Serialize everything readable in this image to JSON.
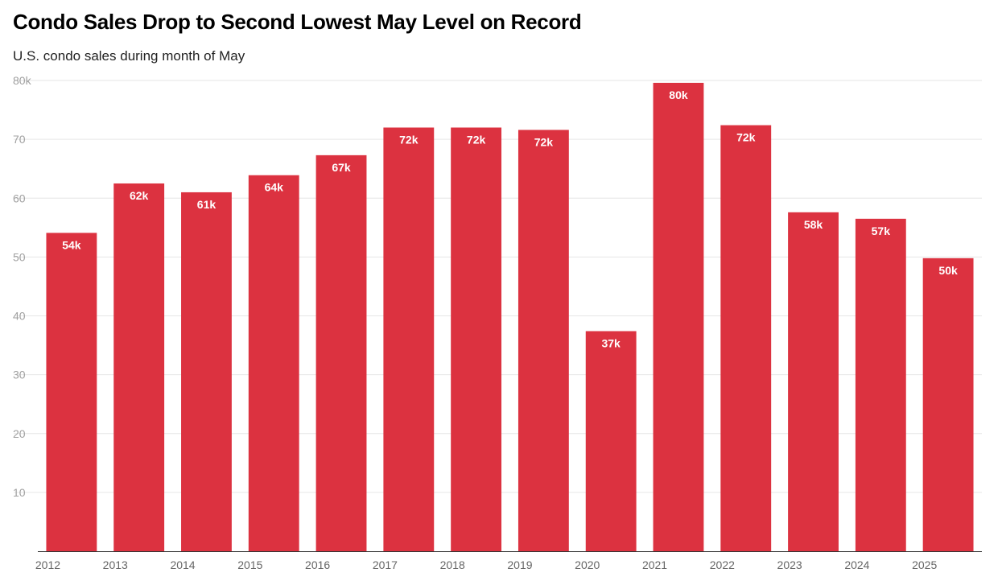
{
  "chart_data": {
    "type": "bar",
    "title": "Condo Sales Drop to Second Lowest May Level on Record",
    "subtitle": "U.S. condo sales during month of May",
    "xlabel": "",
    "ylabel": "",
    "categories": [
      "2012",
      "2013",
      "2014",
      "2015",
      "2016",
      "2017",
      "2018",
      "2019",
      "2020",
      "2021",
      "2022",
      "2023",
      "2024",
      "2025"
    ],
    "values": [
      54.1,
      62.5,
      61.0,
      63.9,
      67.3,
      72.0,
      72.0,
      71.6,
      37.4,
      79.6,
      72.4,
      57.6,
      56.5,
      49.8
    ],
    "data_labels": [
      "54k",
      "62k",
      "61k",
      "64k",
      "67k",
      "72k",
      "72k",
      "72k",
      "37k",
      "80k",
      "72k",
      "58k",
      "57k",
      "50k"
    ],
    "ylim": [
      0,
      80
    ],
    "yticks": [
      10,
      20,
      30,
      40,
      50,
      60,
      70,
      80
    ],
    "ytick_labels": [
      "10",
      "20",
      "30",
      "40",
      "50",
      "60",
      "70",
      "80k"
    ],
    "grid": true,
    "bar_color": "#dc3240"
  }
}
